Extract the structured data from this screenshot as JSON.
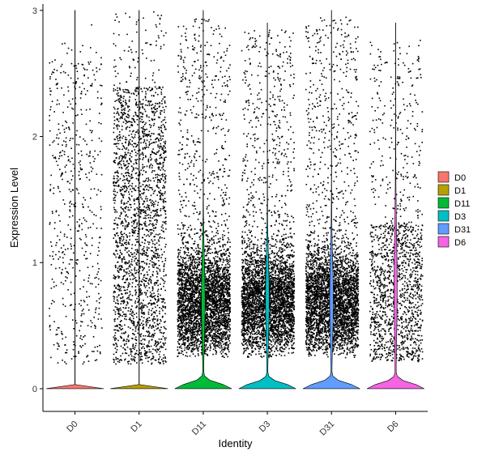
{
  "chart_data": {
    "type": "violin",
    "xlabel": "Identity",
    "ylabel": "Expression Level",
    "categories": [
      "D0",
      "D1",
      "D11",
      "D3",
      "D31",
      "D6"
    ],
    "ylim": [
      -0.18,
      3.05
    ],
    "yticks": [
      0,
      1,
      2,
      3
    ],
    "grid": false,
    "legend_position": "right",
    "legend": [
      "D0",
      "D1",
      "D11",
      "D3",
      "D31",
      "D6"
    ],
    "colors": [
      "#F8766D",
      "#B79F00",
      "#00BA38",
      "#00BFC4",
      "#619CFF",
      "#F564E3"
    ],
    "series": [
      {
        "name": "D0",
        "color": "#F8766D",
        "violin_max": 3.0,
        "density_peak_at": 0.0,
        "dense_range": [
          0.2,
          2.6
        ],
        "point_density": "low"
      },
      {
        "name": "D1",
        "color": "#B79F00",
        "violin_max": 3.0,
        "density_peak_at": 0.0,
        "dense_range": [
          0.2,
          2.4
        ],
        "point_density": "medium"
      },
      {
        "name": "D11",
        "color": "#00BA38",
        "violin_max": 3.0,
        "density_peak_at": 0.0,
        "dense_range": [
          0.25,
          1.2
        ],
        "point_density": "high"
      },
      {
        "name": "D3",
        "color": "#00BFC4",
        "violin_max": 2.9,
        "density_peak_at": 0.0,
        "dense_range": [
          0.25,
          1.2
        ],
        "point_density": "high"
      },
      {
        "name": "D31",
        "color": "#619CFF",
        "violin_max": 3.0,
        "density_peak_at": 0.0,
        "dense_range": [
          0.25,
          1.3
        ],
        "point_density": "high"
      },
      {
        "name": "D6",
        "color": "#F564E3",
        "violin_max": 2.9,
        "density_peak_at": 0.0,
        "dense_range": [
          0.2,
          1.5
        ],
        "point_density": "medium"
      }
    ]
  }
}
